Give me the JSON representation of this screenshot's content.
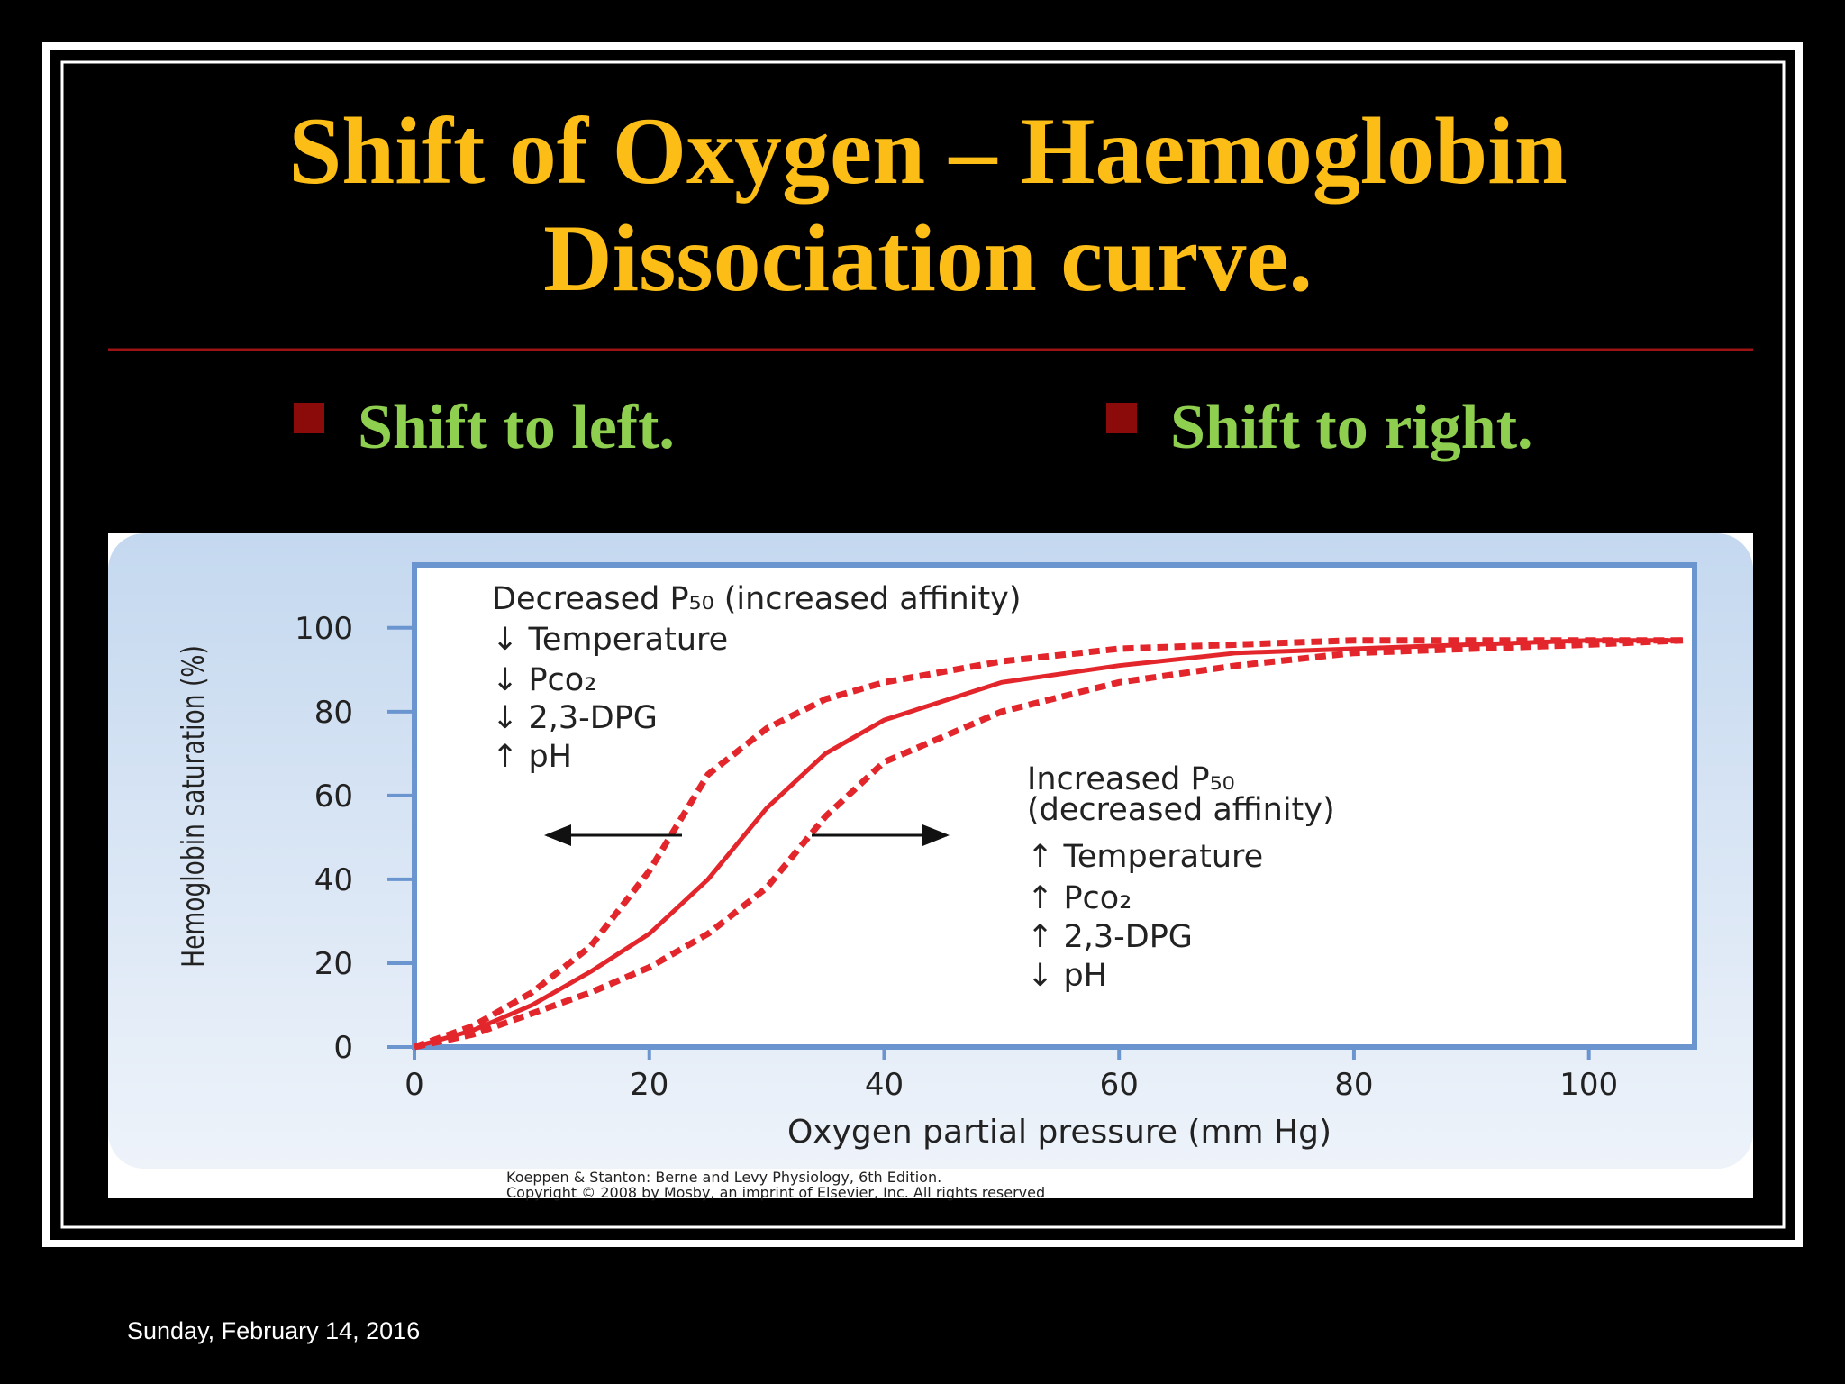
{
  "slide": {
    "title": [
      "Shift of Oxygen – Haemoglobin",
      "Dissociation curve."
    ],
    "bullets": [
      "Shift to left.",
      "Shift to right."
    ],
    "date": "Sunday, February 14, 2016"
  },
  "chart_data": {
    "type": "line",
    "x_label": "Oxygen partial pressure (mm Hg)",
    "y_label": "Hemoglobin saturation (%)",
    "x": [
      0,
      5,
      10,
      15,
      20,
      25,
      30,
      35,
      40,
      50,
      60,
      70,
      80,
      90,
      100,
      108
    ],
    "series": [
      {
        "color": "#e3262b",
        "line_style": "dashed",
        "values": [
          0,
          5,
          13,
          24,
          42,
          65,
          76,
          83,
          87,
          92,
          95,
          96,
          97,
          97,
          97,
          97
        ]
      },
      {
        "color": "#e3262b",
        "line_style": "solid",
        "values": [
          0,
          4,
          10,
          18,
          27,
          40,
          57,
          70,
          78,
          87,
          91,
          94,
          95,
          96,
          97,
          97
        ]
      },
      {
        "color": "#e3262b",
        "line_style": "dashed",
        "values": [
          0,
          3,
          8,
          13,
          19,
          27,
          38,
          55,
          68,
          80,
          87,
          91,
          94,
          95,
          96,
          97
        ]
      }
    ],
    "xlim": [
      0,
      109
    ],
    "ylim": [
      0,
      115
    ],
    "xticks": [
      0,
      20,
      40,
      60,
      80,
      100
    ],
    "yticks": [
      0,
      20,
      40,
      60,
      80,
      100
    ],
    "grid": false,
    "annotations_left": [
      "Decreased P₅₀ (increased affinity)",
      "↓ Temperature",
      "↓ Pco₂",
      "↓ 2,3-DPG",
      "↑ pH"
    ],
    "annotations_right": [
      "Increased P₅₀",
      "(decreased affinity)",
      "↑ Temperature",
      "↑ Pco₂",
      "↑ 2,3-DPG",
      "↓ pH"
    ],
    "credit": [
      "Koeppen & Stanton: Berne and Levy Physiology, 6th Edition.",
      "Copyright © 2008 by Mosby, an imprint of Elsevier, Inc. All rights reserved"
    ]
  }
}
